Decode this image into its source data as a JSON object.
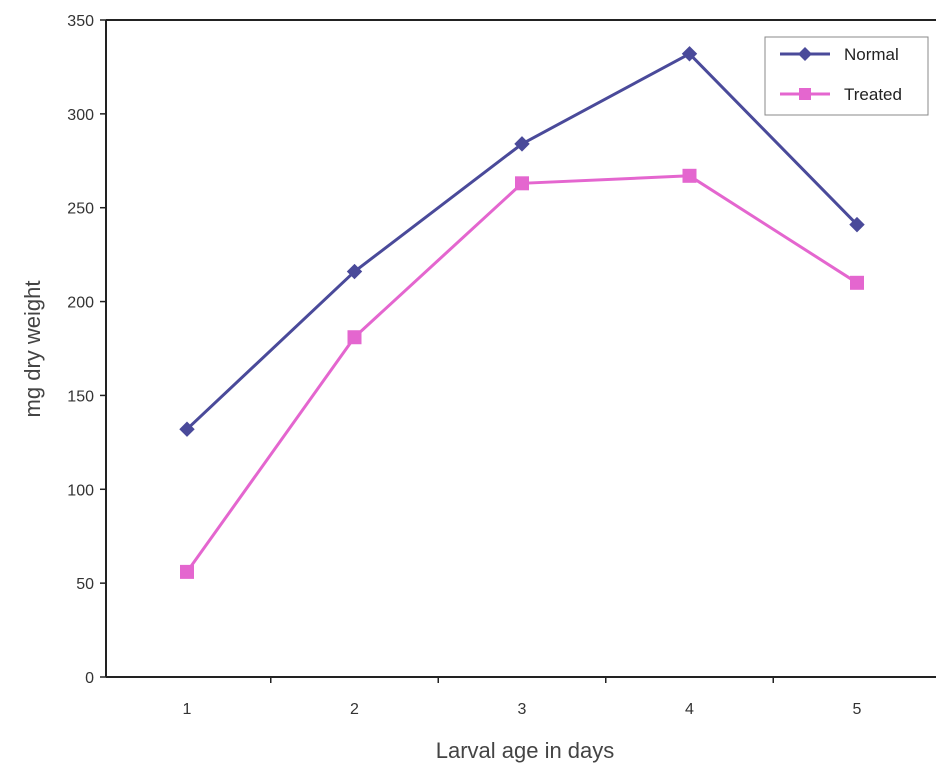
{
  "chart_data": {
    "type": "line",
    "title": "",
    "xlabel": "Larval age in days",
    "ylabel": "mg dry weight",
    "x": [
      1,
      2,
      3,
      4,
      5
    ],
    "xticks": [
      "1",
      "2",
      "3",
      "4",
      "5"
    ],
    "ylim": [
      0,
      350
    ],
    "yticks": [
      0,
      50,
      100,
      150,
      200,
      250,
      300,
      350
    ],
    "grid": false,
    "legend_position": "top-right",
    "series": [
      {
        "name": "Normal",
        "values": [
          132,
          216,
          284,
          332,
          241
        ],
        "color": "#4a4a9a",
        "marker": "diamond"
      },
      {
        "name": "Treated",
        "values": [
          56,
          181,
          263,
          267,
          210
        ],
        "color": "#e466cf",
        "marker": "square"
      }
    ]
  }
}
